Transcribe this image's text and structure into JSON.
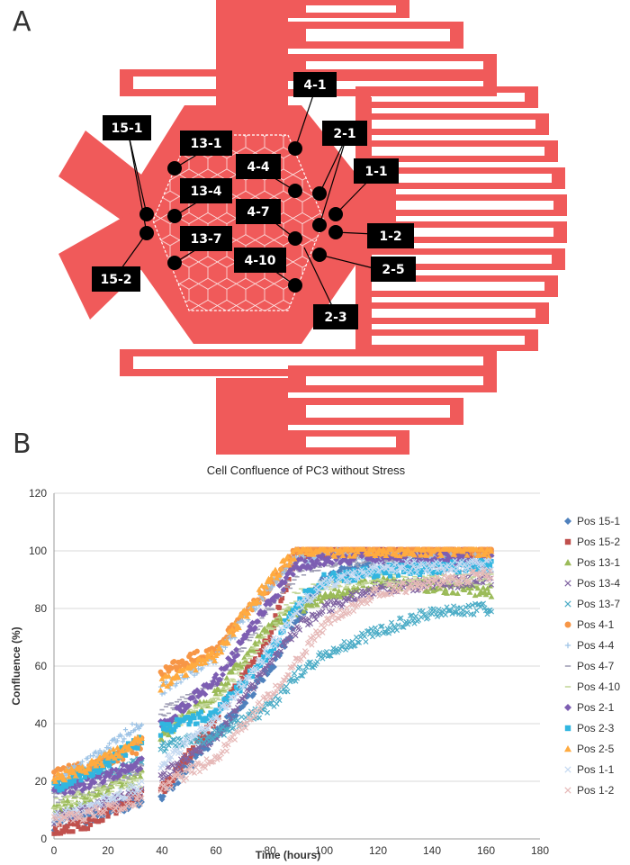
{
  "panel_a": {
    "letter": "A",
    "device_color": "#f05a5a",
    "markers": [
      {
        "label": "15-1"
      },
      {
        "label": "13-1"
      },
      {
        "label": "13-4"
      },
      {
        "label": "13-7"
      },
      {
        "label": "15-2"
      },
      {
        "label": "4-1"
      },
      {
        "label": "4-4"
      },
      {
        "label": "4-7"
      },
      {
        "label": "4-10"
      },
      {
        "label": "2-1"
      },
      {
        "label": "1-1"
      },
      {
        "label": "1-2"
      },
      {
        "label": "2-5"
      },
      {
        "label": "2-3"
      }
    ]
  },
  "panel_b": {
    "letter": "B"
  },
  "chart_data": {
    "type": "scatter",
    "title": "Cell Confluence of PC3 without Stress",
    "xlabel": "Time (hours)",
    "ylabel": "Confluence (%)",
    "xlim": [
      0,
      180
    ],
    "ylim": [
      0,
      120
    ],
    "xticks": [
      0,
      20,
      40,
      60,
      80,
      100,
      120,
      140,
      160,
      180
    ],
    "yticks": [
      0,
      20,
      40,
      60,
      80,
      100,
      120
    ],
    "grid": true,
    "legend_position": "right",
    "series": [
      {
        "name": "Pos 15-1",
        "color": "#4f81bd",
        "marker": "diamond",
        "knots": [
          [
            0,
            5
          ],
          [
            15,
            8
          ],
          [
            32,
            13
          ],
          [
            40,
            15
          ],
          [
            60,
            36
          ],
          [
            80,
            59
          ],
          [
            90,
            76
          ],
          [
            100,
            90
          ],
          [
            120,
            97
          ],
          [
            162,
            97
          ]
        ]
      },
      {
        "name": "Pos 15-2",
        "color": "#c0504d",
        "marker": "square",
        "knots": [
          [
            0,
            3
          ],
          [
            15,
            6
          ],
          [
            32,
            16
          ],
          [
            40,
            17
          ],
          [
            60,
            42
          ],
          [
            80,
            70
          ],
          [
            90,
            100
          ],
          [
            100,
            100
          ],
          [
            120,
            100
          ],
          [
            162,
            100
          ]
        ]
      },
      {
        "name": "Pos 13-1",
        "color": "#9bbb59",
        "marker": "triangle",
        "knots": [
          [
            0,
            10
          ],
          [
            15,
            16
          ],
          [
            32,
            22
          ],
          [
            40,
            36
          ],
          [
            60,
            50
          ],
          [
            80,
            74
          ],
          [
            90,
            80
          ],
          [
            100,
            84
          ],
          [
            120,
            89
          ],
          [
            162,
            86
          ]
        ]
      },
      {
        "name": "Pos 13-4",
        "color": "#8064a2",
        "marker": "x",
        "knots": [
          [
            0,
            7
          ],
          [
            15,
            11
          ],
          [
            32,
            16
          ],
          [
            40,
            22
          ],
          [
            60,
            35
          ],
          [
            80,
            62
          ],
          [
            90,
            73
          ],
          [
            100,
            80
          ],
          [
            120,
            87
          ],
          [
            162,
            90
          ]
        ]
      },
      {
        "name": "Pos 13-7",
        "color": "#4bacc6",
        "marker": "x",
        "knots": [
          [
            0,
            18
          ],
          [
            15,
            22
          ],
          [
            32,
            26
          ],
          [
            40,
            32
          ],
          [
            60,
            36
          ],
          [
            80,
            46
          ],
          [
            90,
            57
          ],
          [
            100,
            64
          ],
          [
            120,
            72
          ],
          [
            140,
            79
          ],
          [
            162,
            80
          ]
        ]
      },
      {
        "name": "Pos 4-1",
        "color": "#f79646",
        "marker": "circle",
        "knots": [
          [
            0,
            23
          ],
          [
            15,
            25
          ],
          [
            32,
            32
          ],
          [
            40,
            58
          ],
          [
            60,
            66
          ],
          [
            80,
            88
          ],
          [
            90,
            100
          ],
          [
            100,
            100
          ],
          [
            120,
            100
          ],
          [
            162,
            100
          ]
        ]
      },
      {
        "name": "Pos 4-4",
        "color": "#9dc3e6",
        "marker": "plus",
        "knots": [
          [
            0,
            20
          ],
          [
            15,
            28
          ],
          [
            32,
            40
          ],
          [
            40,
            52
          ],
          [
            60,
            63
          ],
          [
            80,
            88
          ],
          [
            90,
            97
          ],
          [
            100,
            99
          ],
          [
            120,
            98
          ],
          [
            162,
            97
          ]
        ]
      },
      {
        "name": "Pos 4-7",
        "color": "#a09fb5",
        "marker": "dash",
        "knots": [
          [
            0,
            14
          ],
          [
            15,
            18
          ],
          [
            32,
            24
          ],
          [
            40,
            44
          ],
          [
            60,
            54
          ],
          [
            80,
            80
          ],
          [
            90,
            92
          ],
          [
            100,
            96
          ],
          [
            120,
            96
          ],
          [
            162,
            94
          ]
        ]
      },
      {
        "name": "Pos 4-10",
        "color": "#c4d79b",
        "marker": "dash",
        "knots": [
          [
            0,
            12
          ],
          [
            15,
            16
          ],
          [
            32,
            20
          ],
          [
            40,
            38
          ],
          [
            60,
            48
          ],
          [
            80,
            72
          ],
          [
            90,
            85
          ],
          [
            100,
            88
          ],
          [
            120,
            90
          ],
          [
            162,
            90
          ]
        ]
      },
      {
        "name": "Pos 2-1",
        "color": "#7d5eb2",
        "marker": "diamond",
        "knots": [
          [
            0,
            16
          ],
          [
            15,
            20
          ],
          [
            32,
            26
          ],
          [
            40,
            40
          ],
          [
            60,
            55
          ],
          [
            80,
            82
          ],
          [
            90,
            95
          ],
          [
            100,
            97
          ],
          [
            120,
            98
          ],
          [
            162,
            97
          ]
        ]
      },
      {
        "name": "Pos 2-3",
        "color": "#31b6e0",
        "marker": "square",
        "knots": [
          [
            0,
            18
          ],
          [
            15,
            24
          ],
          [
            32,
            34
          ],
          [
            40,
            38
          ],
          [
            60,
            44
          ],
          [
            80,
            64
          ],
          [
            90,
            82
          ],
          [
            100,
            90
          ],
          [
            120,
            93
          ],
          [
            162,
            95
          ]
        ]
      },
      {
        "name": "Pos 2-5",
        "color": "#ffab40",
        "marker": "triangle",
        "knots": [
          [
            0,
            21
          ],
          [
            15,
            26
          ],
          [
            32,
            34
          ],
          [
            40,
            54
          ],
          [
            60,
            64
          ],
          [
            80,
            90
          ],
          [
            90,
            100
          ],
          [
            100,
            100
          ],
          [
            120,
            100
          ],
          [
            162,
            100
          ]
        ]
      },
      {
        "name": "Pos 1-1",
        "color": "#c5d9f1",
        "marker": "x",
        "knots": [
          [
            0,
            7
          ],
          [
            15,
            12
          ],
          [
            32,
            18
          ],
          [
            40,
            26
          ],
          [
            60,
            42
          ],
          [
            80,
            66
          ],
          [
            90,
            80
          ],
          [
            100,
            88
          ],
          [
            120,
            94
          ],
          [
            162,
            95
          ]
        ]
      },
      {
        "name": "Pos 1-2",
        "color": "#e6b9b8",
        "marker": "x",
        "knots": [
          [
            0,
            6
          ],
          [
            15,
            9
          ],
          [
            32,
            14
          ],
          [
            40,
            18
          ],
          [
            60,
            28
          ],
          [
            80,
            50
          ],
          [
            90,
            62
          ],
          [
            100,
            74
          ],
          [
            120,
            86
          ],
          [
            162,
            92
          ]
        ]
      }
    ]
  }
}
